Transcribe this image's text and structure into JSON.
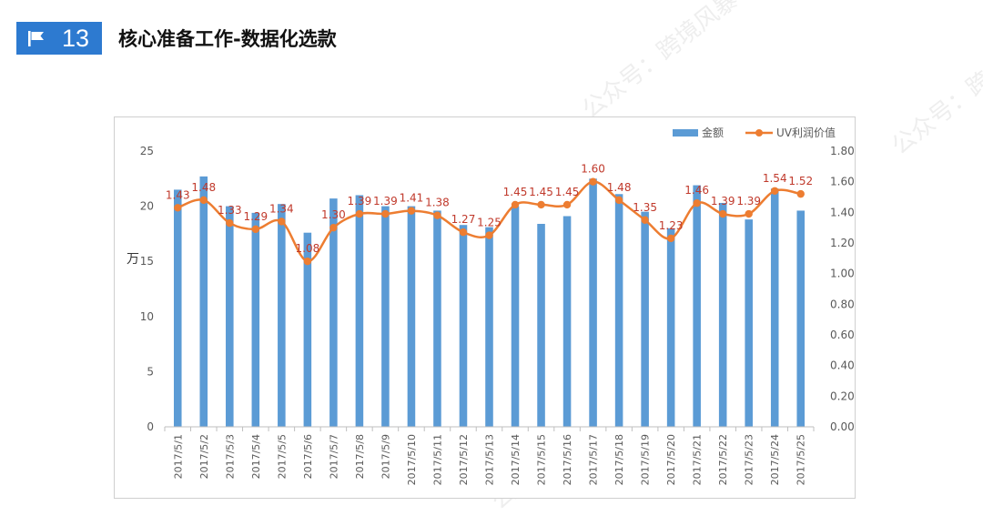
{
  "header": {
    "number": "13",
    "title": "核心准备工作-数据化选款",
    "flag_icon": "flag-icon",
    "badge_color": "#2d7ad0"
  },
  "watermark": {
    "text": "公众号：跨境风暴"
  },
  "chart_data": {
    "type": "bar+line",
    "categories": [
      "2017/5/1",
      "2017/5/2",
      "2017/5/3",
      "2017/5/4",
      "2017/5/5",
      "2017/5/6",
      "2017/5/7",
      "2017/5/8",
      "2017/5/9",
      "2017/5/10",
      "2017/5/11",
      "2017/5/12",
      "2017/5/13",
      "2017/5/14",
      "2017/5/15",
      "2017/5/16",
      "2017/5/17",
      "2017/5/18",
      "2017/5/19",
      "2017/5/20",
      "2017/5/21",
      "2017/5/22",
      "2017/5/23",
      "2017/5/24",
      "2017/5/25"
    ],
    "ylabel": "万",
    "ylim": [
      0,
      25
    ],
    "y_ticks": [
      "0",
      "5",
      "10",
      "15",
      "20",
      "25"
    ],
    "y2lim": [
      0,
      1.8
    ],
    "y2_ticks": [
      "0.00",
      "0.20",
      "0.40",
      "0.60",
      "0.80",
      "1.00",
      "1.20",
      "1.40",
      "1.60",
      "1.80"
    ],
    "grid": false,
    "legend_position": "top-right",
    "series": [
      {
        "name": "金额",
        "kind": "bar",
        "axis": "left",
        "color": "#5b9bd5",
        "values": [
          21.5,
          22.7,
          20.0,
          19.4,
          20.2,
          17.6,
          20.7,
          21.0,
          20.0,
          20.0,
          19.6,
          18.3,
          18.1,
          20.0,
          18.4,
          19.1,
          22.5,
          21.1,
          19.5,
          18.0,
          21.9,
          20.3,
          18.8,
          21.6,
          19.6
        ]
      },
      {
        "name": "UV利润价值",
        "kind": "line",
        "axis": "right",
        "color": "#ed7d31",
        "values": [
          1.43,
          1.48,
          1.33,
          1.29,
          1.34,
          1.08,
          1.3,
          1.39,
          1.39,
          1.41,
          1.38,
          1.27,
          1.25,
          1.45,
          1.45,
          1.45,
          1.6,
          1.48,
          1.35,
          1.23,
          1.46,
          1.39,
          1.39,
          1.54,
          1.52
        ],
        "labels": [
          "1.43",
          "1.48",
          "1.33",
          "1.29",
          "1.34",
          "1.08",
          "1.30",
          "1.39",
          "1.39",
          "1.41",
          "1.38",
          "1.27",
          "1.25",
          "1.45",
          "1.45",
          "1.45",
          "1.60",
          "1.48",
          "1.35",
          "1.23",
          "1.46",
          "1.39",
          "1.39",
          "1.54",
          "1.52"
        ],
        "label_color": "#c0392b"
      }
    ]
  }
}
